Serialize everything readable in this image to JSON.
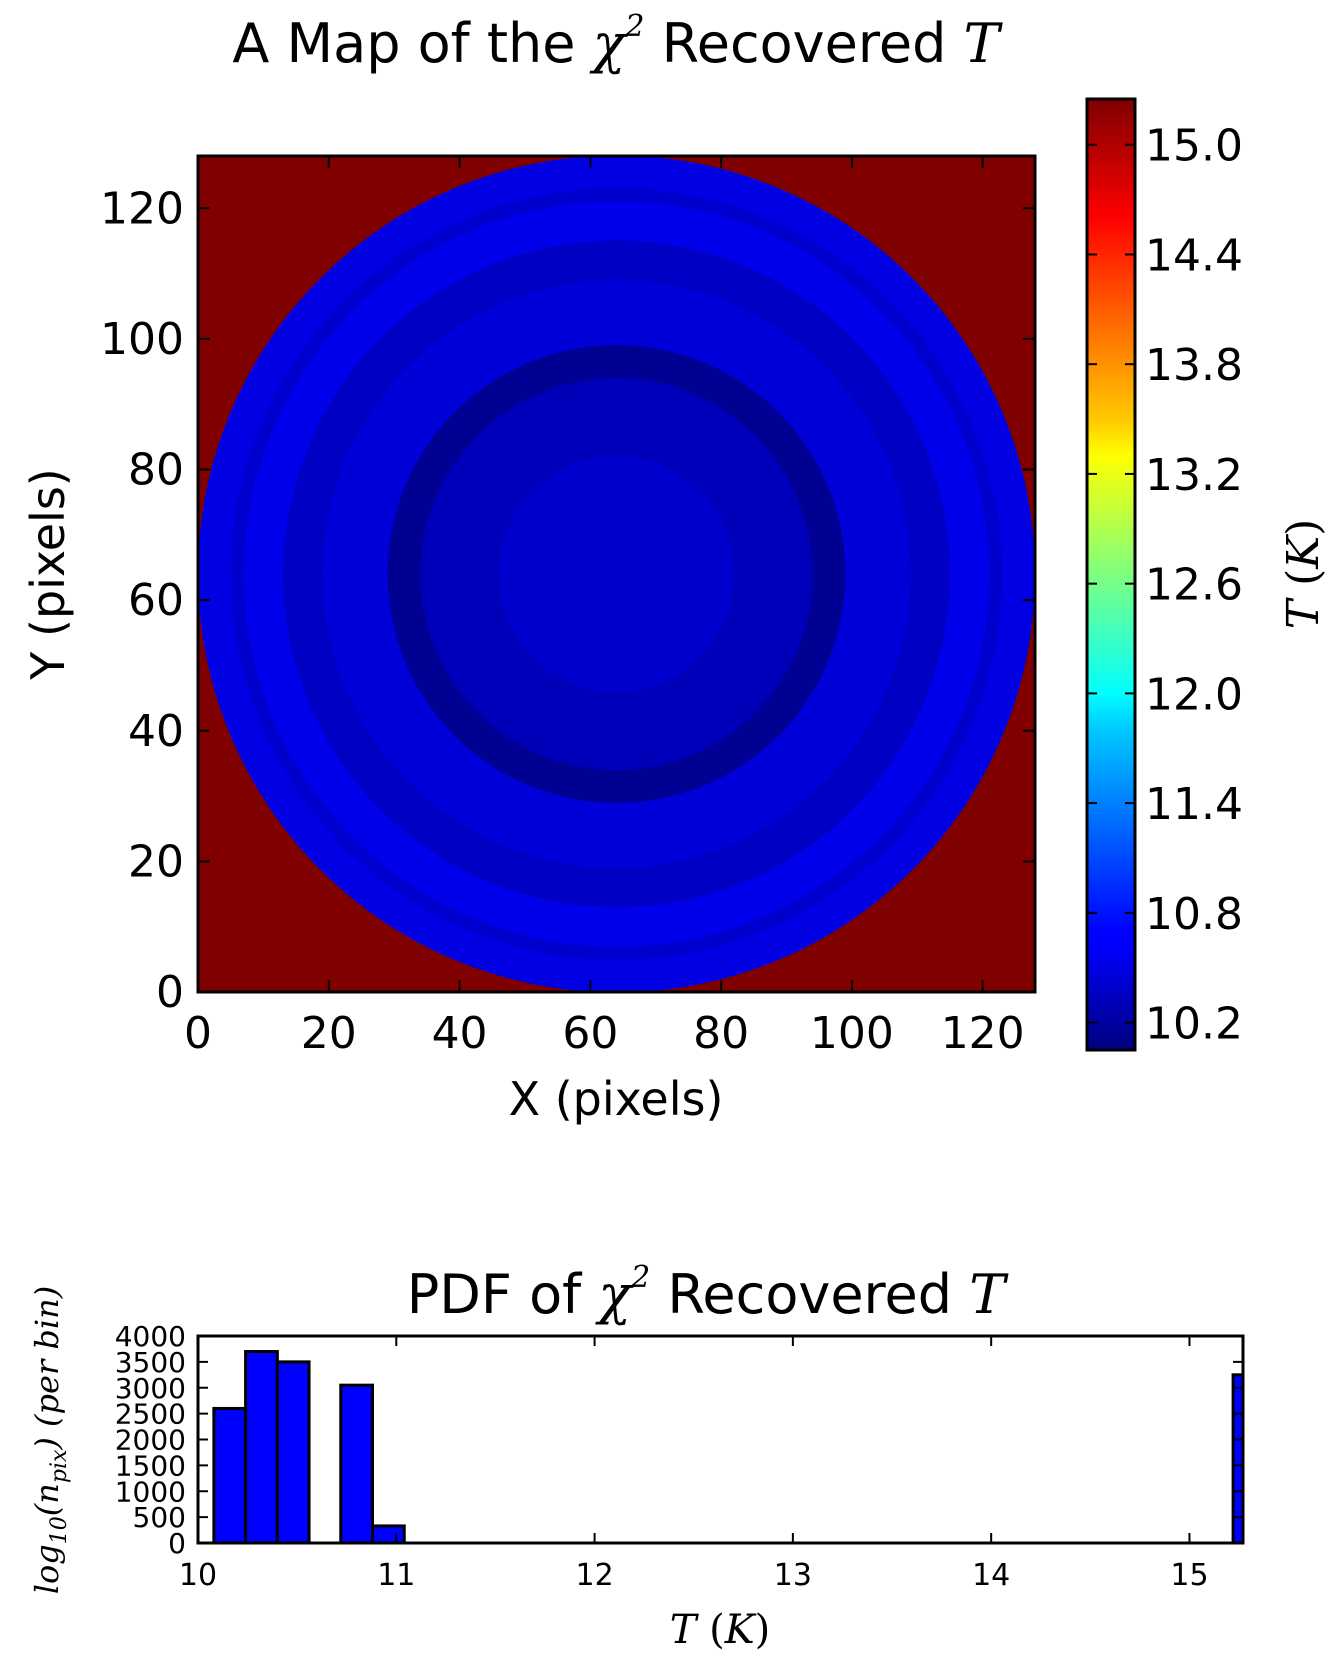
{
  "chart_data": [
    {
      "type": "heatmap",
      "title": "A Map of the χ² Recovered T",
      "title_parts": {
        "prefix": "A Map of the ",
        "chi": "χ",
        "sup": "2",
        "middle": " Recovered ",
        "var": "T"
      },
      "xlabel": "X (pixels)",
      "ylabel": "Y (pixels)",
      "xlim": [
        0,
        128
      ],
      "ylim": [
        0,
        128
      ],
      "xticks": [
        0,
        20,
        40,
        60,
        80,
        100,
        120
      ],
      "yticks": [
        0,
        20,
        40,
        60,
        80,
        100,
        120
      ],
      "background_value": 15.25,
      "center": [
        64,
        64
      ],
      "rings": [
        {
          "r_outer": 64,
          "value": 10.55
        },
        {
          "r_outer": 59,
          "value": 10.45
        },
        {
          "r_outer": 57,
          "value": 10.6
        },
        {
          "r_outer": 51,
          "value": 10.4
        },
        {
          "r_outer": 45,
          "value": 10.5
        },
        {
          "r_outer": 35,
          "value": 10.15
        },
        {
          "r_outer": 30,
          "value": 10.35
        },
        {
          "r_outer": 18,
          "value": 10.45
        }
      ],
      "colorbar": {
        "label": "T (K)",
        "label_var": "T",
        "label_unit": "K",
        "vmin": 10.05,
        "vmax": 15.25,
        "ticks": [
          "10.2",
          "10.8",
          "11.4",
          "12.0",
          "12.6",
          "13.2",
          "13.8",
          "14.4",
          "15.0"
        ],
        "colormap": "jet"
      }
    },
    {
      "type": "bar",
      "title": "PDF of χ² Recovered T",
      "title_parts": {
        "prefix": "PDF of ",
        "chi": "χ",
        "sup": "2",
        "middle": " Recovered ",
        "var": "T"
      },
      "xlabel": "T (K)",
      "ylabel": "log10(n_pix) (per bin)",
      "ylabel_parts": {
        "log": "log",
        "sub10": "10",
        "open": "(n",
        "subpix": "pix",
        "close": ")  (per bin)"
      },
      "xlim": [
        10,
        15.27
      ],
      "ylim": [
        0,
        4000
      ],
      "xticks": [
        "10",
        "11",
        "12",
        "13",
        "14",
        "15"
      ],
      "yticks": [
        "0",
        "500",
        "1000",
        "1500",
        "2000",
        "2500",
        "3000",
        "3500",
        "4000"
      ],
      "bar_color": "#0000ff",
      "bins": [
        {
          "x0": 10.08,
          "x1": 10.24,
          "count": 2600
        },
        {
          "x0": 10.24,
          "x1": 10.4,
          "count": 3700
        },
        {
          "x0": 10.4,
          "x1": 10.56,
          "count": 3500
        },
        {
          "x0": 10.56,
          "x1": 10.72,
          "count": 0
        },
        {
          "x0": 10.72,
          "x1": 10.88,
          "count": 3050
        },
        {
          "x0": 10.88,
          "x1": 11.04,
          "count": 330
        },
        {
          "x0": 15.22,
          "x1": 15.27,
          "count": 3250
        }
      ]
    }
  ]
}
